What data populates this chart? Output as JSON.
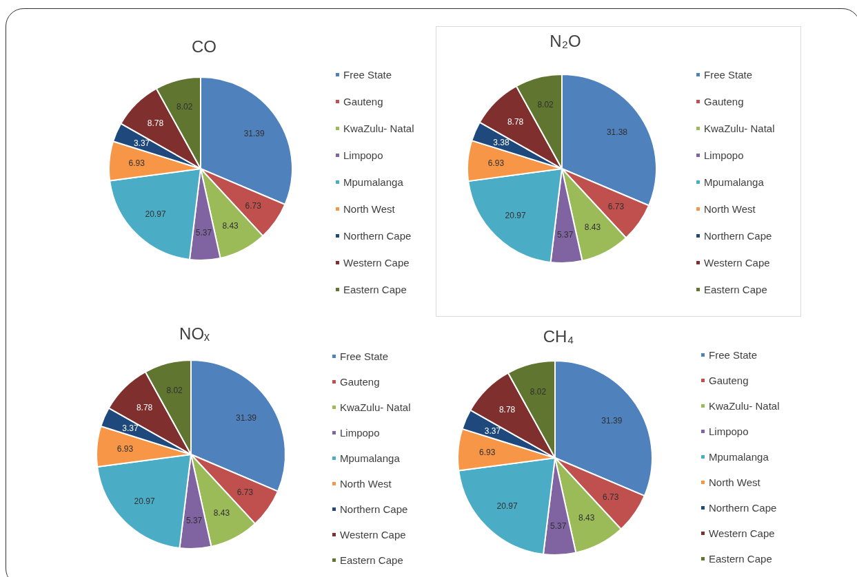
{
  "chart_data": [
    {
      "type": "pie",
      "title": "CO",
      "categories": [
        "Free State",
        "Gauteng",
        "KwaZulu- Natal",
        "Limpopo",
        "Mpumalanga",
        "North West",
        "Northern Cape",
        "Western Cape",
        "Eastern Cape"
      ],
      "values": [
        31.39,
        6.73,
        8.43,
        5.37,
        20.97,
        6.93,
        3.37,
        8.78,
        8.02
      ],
      "colors": [
        "#4f81bd",
        "#c0504d",
        "#9bbb59",
        "#8064a2",
        "#4bacc6",
        "#f79646",
        "#1f497d",
        "#7f2f2d",
        "#5f7530"
      ],
      "data_labels": true,
      "legend": "right"
    },
    {
      "type": "pie",
      "title": "N₂O",
      "categories": [
        "Free State",
        "Gauteng",
        "KwaZulu- Natal",
        "Limpopo",
        "Mpumalanga",
        "North West",
        "Northern Cape",
        "Western Cape",
        "Eastern Cape"
      ],
      "values": [
        31.38,
        6.73,
        8.43,
        5.37,
        20.97,
        6.93,
        3.38,
        8.78,
        8.02
      ],
      "colors": [
        "#4f81bd",
        "#c0504d",
        "#9bbb59",
        "#8064a2",
        "#4bacc6",
        "#f79646",
        "#1f497d",
        "#7f2f2d",
        "#5f7530"
      ],
      "data_labels": true,
      "legend": "right"
    },
    {
      "type": "pie",
      "title": "NOₓ",
      "categories": [
        "Free State",
        "Gauteng",
        "KwaZulu- Natal",
        "Limpopo",
        "Mpumalanga",
        "North West",
        "Northern Cape",
        "Western Cape",
        "Eastern Cape"
      ],
      "values": [
        31.39,
        6.73,
        8.43,
        5.37,
        20.97,
        6.93,
        3.37,
        8.78,
        8.02
      ],
      "colors": [
        "#4f81bd",
        "#c0504d",
        "#9bbb59",
        "#8064a2",
        "#4bacc6",
        "#f79646",
        "#1f497d",
        "#7f2f2d",
        "#5f7530"
      ],
      "data_labels": true,
      "legend": "right"
    },
    {
      "type": "pie",
      "title": "CH₄",
      "categories": [
        "Free State",
        "Gauteng",
        "KwaZulu- Natal",
        "Limpopo",
        "Mpumalanga",
        "North West",
        "Northern Cape",
        "Western Cape",
        "Eastern Cape"
      ],
      "values": [
        31.39,
        6.73,
        8.43,
        5.37,
        20.97,
        6.93,
        3.37,
        8.78,
        8.02
      ],
      "colors": [
        "#4f81bd",
        "#c0504d",
        "#9bbb59",
        "#8064a2",
        "#4bacc6",
        "#f79646",
        "#1f497d",
        "#7f2f2d",
        "#5f7530"
      ],
      "data_labels": true,
      "legend": "right"
    }
  ]
}
